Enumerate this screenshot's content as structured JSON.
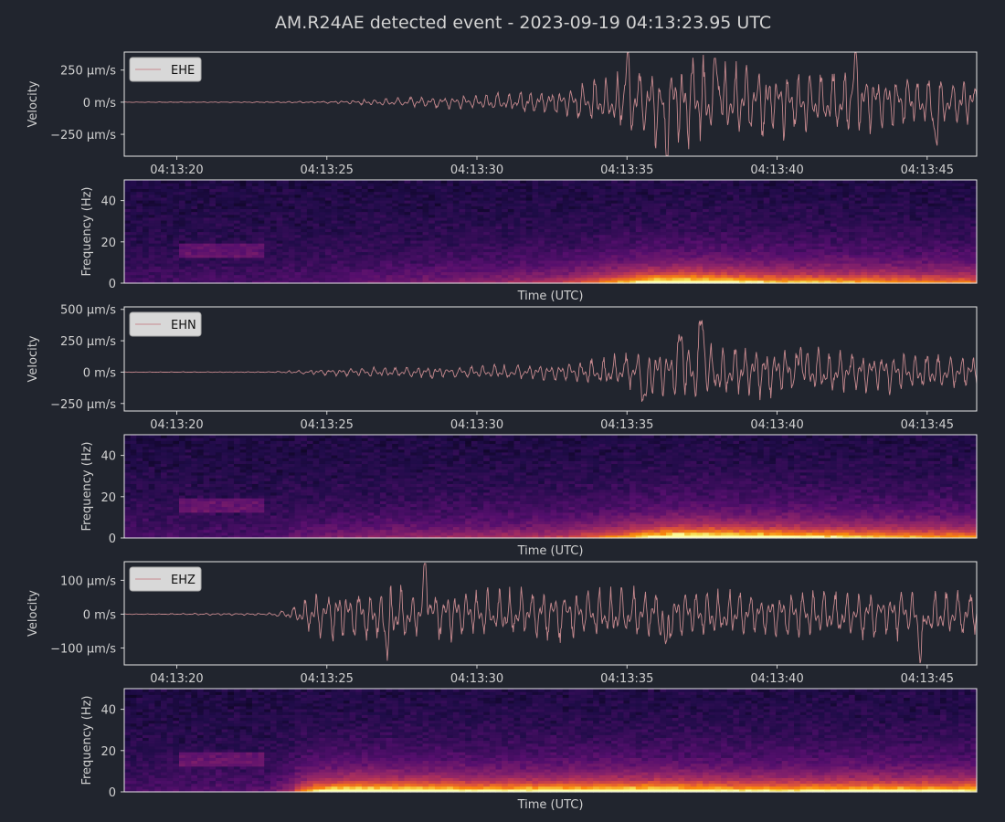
{
  "title": "AM.R24AE detected event - 2023-09-19 04:13:23.95 UTC",
  "colors": {
    "background": "#21252e",
    "trace": "#c88a8f",
    "axes_frame": "#e6e6e6",
    "text": "#d0d0d0",
    "legend_bg": "#d8d8d8",
    "spectrogram_colormap": "inferno"
  },
  "chart_data": [
    {
      "type": "line",
      "channel": "EHE",
      "legend": [
        "EHE"
      ],
      "legend_position": "top-left",
      "ylabel": "Velocity",
      "y_ticks": [
        "250 µm/s",
        "0 m/s",
        "−250 µm/s"
      ],
      "y_tick_values": [
        250,
        0,
        -250
      ],
      "ylim": [
        -420,
        390
      ],
      "x_ticks": [
        "04:13:20",
        "04:13:25",
        "04:13:30",
        "04:13:35",
        "04:13:40",
        "04:13:45"
      ],
      "x_tick_seconds": [
        20,
        25,
        30,
        35,
        40,
        45
      ],
      "xlim": [
        18.25,
        46.65
      ],
      "envelope": [
        [
          18.25,
          2
        ],
        [
          22,
          3
        ],
        [
          25,
          8
        ],
        [
          26,
          20
        ],
        [
          28,
          40
        ],
        [
          30,
          60
        ],
        [
          33,
          110
        ],
        [
          34.5,
          230
        ],
        [
          36.5,
          370
        ],
        [
          38,
          330
        ],
        [
          40,
          260
        ],
        [
          42.5,
          250
        ],
        [
          44.5,
          210
        ],
        [
          46.65,
          190
        ]
      ],
      "peaks": [
        [
          36.3,
          -360
        ],
        [
          38.0,
          330
        ],
        [
          35.0,
          300
        ],
        [
          42.6,
          280
        ],
        [
          45.3,
          -260
        ]
      ]
    },
    {
      "type": "heatmap",
      "channel": "EHE",
      "xlabel": "Time (UTC)",
      "ylabel": "Frequency (Hz)",
      "y_ticks": [
        "40",
        "20",
        "0"
      ],
      "y_tick_values": [
        40,
        20,
        0
      ],
      "ylim": [
        0,
        50
      ],
      "xlim": [
        18.25,
        46.65
      ]
    },
    {
      "type": "line",
      "channel": "EHN",
      "legend": [
        "EHN"
      ],
      "legend_position": "top-left",
      "ylabel": "Velocity",
      "y_ticks": [
        "500 µm/s",
        "250 µm/s",
        "0 m/s",
        "−250 µm/s"
      ],
      "y_tick_values": [
        500,
        250,
        0,
        -250
      ],
      "ylim": [
        -310,
        520
      ],
      "x_ticks": [
        "04:13:20",
        "04:13:25",
        "04:13:30",
        "04:13:35",
        "04:13:40",
        "04:13:45"
      ],
      "x_tick_seconds": [
        20,
        25,
        30,
        35,
        40,
        45
      ],
      "xlim": [
        18.25,
        46.65
      ],
      "envelope": [
        [
          18.25,
          2
        ],
        [
          23,
          3
        ],
        [
          25,
          25
        ],
        [
          27,
          40
        ],
        [
          30,
          50
        ],
        [
          33,
          70
        ],
        [
          35,
          150
        ],
        [
          36.5,
          230
        ],
        [
          38,
          220
        ],
        [
          40,
          200
        ],
        [
          42.5,
          170
        ],
        [
          44.5,
          150
        ],
        [
          46.65,
          140
        ]
      ],
      "peaks": [
        [
          37.5,
          460
        ],
        [
          36.8,
          270
        ],
        [
          40.8,
          200
        ],
        [
          35.6,
          -230
        ]
      ]
    },
    {
      "type": "heatmap",
      "channel": "EHN",
      "xlabel": "Time (UTC)",
      "ylabel": "Frequency (Hz)",
      "y_ticks": [
        "40",
        "20",
        "0"
      ],
      "y_tick_values": [
        40,
        20,
        0
      ],
      "ylim": [
        0,
        50
      ],
      "xlim": [
        18.25,
        46.65
      ]
    },
    {
      "type": "line",
      "channel": "EHZ",
      "legend": [
        "EHZ"
      ],
      "legend_position": "top-left",
      "ylabel": "Velocity",
      "y_ticks": [
        "100 µm/s",
        "0 m/s",
        "−100 µm/s"
      ],
      "y_tick_values": [
        100,
        0,
        -100
      ],
      "ylim": [
        -150,
        155
      ],
      "x_ticks": [
        "04:13:20",
        "04:13:25",
        "04:13:30",
        "04:13:35",
        "04:13:40",
        "04:13:45"
      ],
      "x_tick_seconds": [
        20,
        25,
        30,
        35,
        40,
        45
      ],
      "xlim": [
        18.25,
        46.65
      ],
      "envelope": [
        [
          18.25,
          1
        ],
        [
          19.5,
          1
        ],
        [
          21,
          3
        ],
        [
          23,
          3
        ],
        [
          23.7,
          15
        ],
        [
          24.6,
          70
        ],
        [
          26,
          85
        ],
        [
          28,
          80
        ],
        [
          30,
          70
        ],
        [
          33,
          75
        ],
        [
          36,
          80
        ],
        [
          40,
          65
        ],
        [
          43,
          75
        ],
        [
          46.65,
          70
        ]
      ],
      "peaks": [
        [
          28.3,
          128
        ],
        [
          44.8,
          -125
        ],
        [
          27,
          -80
        ],
        [
          36.3,
          -100
        ]
      ]
    },
    {
      "type": "heatmap",
      "channel": "EHZ",
      "xlabel": "Time (UTC)",
      "ylabel": "Frequency (Hz)",
      "y_ticks": [
        "40",
        "20",
        "0"
      ],
      "y_tick_values": [
        40,
        20,
        0
      ],
      "ylim": [
        0,
        50
      ],
      "xlim": [
        18.25,
        46.65
      ]
    }
  ]
}
